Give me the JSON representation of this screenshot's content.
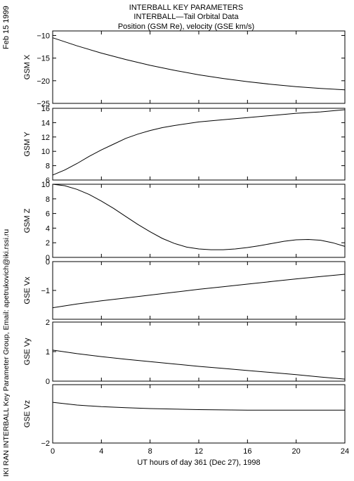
{
  "header": {
    "line1": "INTERBALL KEY PARAMETERS",
    "line2": "INTERBALL—Tail Orbital Data",
    "line3": "Position (GSM Re), velocity (GSE km/s)"
  },
  "side": {
    "date": "Feb 15 1999",
    "credit": "IKI RAN INTERBALL Key Parameter Group, Email: apetrukovich@iki.rssi.ru"
  },
  "colors": {
    "line": "#000000",
    "background": "#ffffff"
  },
  "chart_data": {
    "type": "line",
    "x_axis": {
      "label": "UT hours of day 361 (Dec 27), 1998",
      "range": [
        0,
        24
      ],
      "ticks": [
        0,
        4,
        8,
        12,
        16,
        20,
        24
      ]
    },
    "panels": [
      {
        "ylabel": "GSM X",
        "ylim": [
          -25,
          -9
        ],
        "yticks": [
          -10,
          -15,
          -20,
          -25
        ],
        "x": [
          0,
          2,
          4,
          6,
          8,
          10,
          12,
          14,
          16,
          18,
          20,
          22,
          24
        ],
        "y": [
          -10.5,
          -12.3,
          -13.9,
          -15.3,
          -16.6,
          -17.7,
          -18.7,
          -19.5,
          -20.2,
          -20.8,
          -21.3,
          -21.7,
          -22.0
        ]
      },
      {
        "ylabel": "GSM Y",
        "ylim": [
          6,
          16
        ],
        "yticks": [
          6,
          8,
          10,
          12,
          14,
          16
        ],
        "x": [
          0,
          1,
          2,
          3,
          4,
          5,
          6,
          7,
          8,
          9,
          10,
          12,
          14,
          16,
          18,
          20,
          22,
          24
        ],
        "y": [
          6.7,
          7.4,
          8.3,
          9.3,
          10.2,
          11.0,
          11.8,
          12.4,
          12.9,
          13.3,
          13.6,
          14.1,
          14.4,
          14.7,
          15.0,
          15.3,
          15.5,
          15.8
        ]
      },
      {
        "ylabel": "GSM Z",
        "ylim": [
          0,
          10
        ],
        "yticks": [
          0,
          2,
          4,
          6,
          8,
          10
        ],
        "x": [
          0,
          1,
          2,
          3,
          4,
          5,
          6,
          7,
          8,
          9,
          10,
          11,
          12,
          13,
          14,
          15,
          16,
          17,
          18,
          19,
          20,
          21,
          22,
          23,
          24
        ],
        "y": [
          10.0,
          9.8,
          9.3,
          8.6,
          7.7,
          6.7,
          5.6,
          4.5,
          3.5,
          2.6,
          1.9,
          1.4,
          1.15,
          1.05,
          1.05,
          1.15,
          1.35,
          1.6,
          1.9,
          2.2,
          2.4,
          2.45,
          2.35,
          2.0,
          1.5
        ]
      },
      {
        "ylabel": "GSE Vx",
        "ylim": [
          -2,
          0
        ],
        "yticks": [
          0,
          -1
        ],
        "x": [
          0,
          2,
          4,
          6,
          8,
          10,
          12,
          14,
          16,
          18,
          20,
          22,
          24
        ],
        "y": [
          -1.6,
          -1.47,
          -1.36,
          -1.26,
          -1.16,
          -1.06,
          -0.96,
          -0.87,
          -0.78,
          -0.69,
          -0.6,
          -0.52,
          -0.44
        ]
      },
      {
        "ylabel": "GSE Vy",
        "ylim": [
          0,
          2
        ],
        "yticks": [
          0,
          1,
          2
        ],
        "x": [
          0,
          2,
          4,
          6,
          8,
          10,
          12,
          14,
          16,
          18,
          20,
          22,
          24
        ],
        "y": [
          1.05,
          0.93,
          0.83,
          0.74,
          0.66,
          0.58,
          0.5,
          0.43,
          0.36,
          0.29,
          0.22,
          0.14,
          0.07
        ]
      },
      {
        "ylabel": "GSE Vz",
        "ylim": [
          -2.0,
          0.15
        ],
        "yticks": [
          -2
        ],
        "x": [
          0,
          2,
          4,
          6,
          8,
          10,
          12,
          14,
          16,
          18,
          20,
          22,
          24
        ],
        "y": [
          -0.5,
          -0.6,
          -0.66,
          -0.7,
          -0.73,
          -0.75,
          -0.77,
          -0.78,
          -0.79,
          -0.79,
          -0.79,
          -0.79,
          -0.79
        ]
      }
    ]
  }
}
